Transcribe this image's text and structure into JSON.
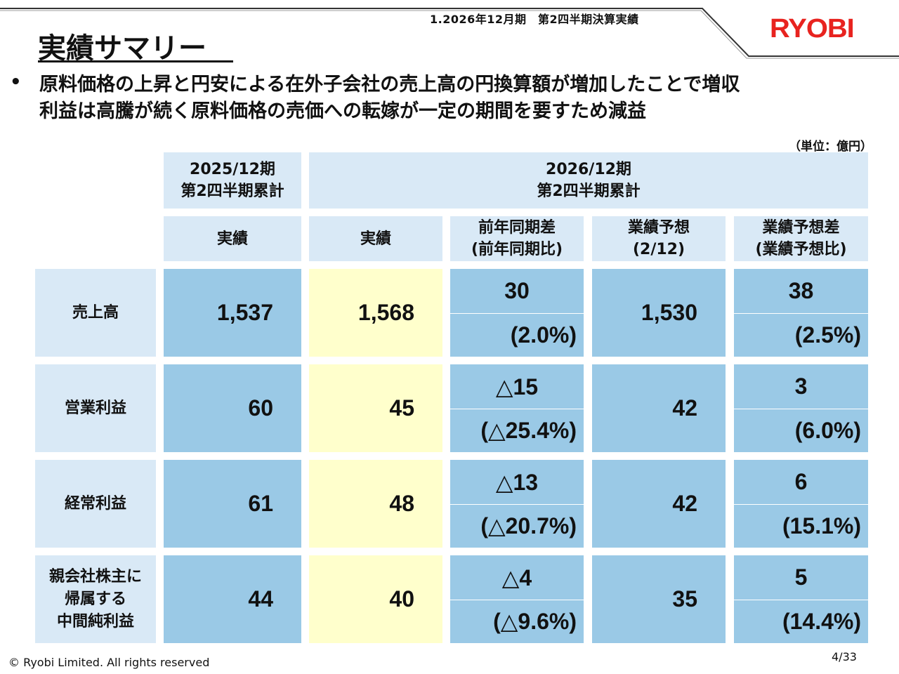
{
  "header": {
    "subtitle": "1.2026年12月期　第2四半期決算実績",
    "logo": "RYOBI",
    "title": "実績サマリー"
  },
  "summary": {
    "bullet": "•",
    "line1": "原料価格の上昇と円安による在外子会社の売上高の円換算額が増加したことで増収",
    "line2": "利益は高騰が続く原料価格の売価への転嫁が一定の期間を要すため減益"
  },
  "unit": "（単位：億円）",
  "table": {
    "period_prev": {
      "line1": "2025/12期",
      "line2": "第2四半期累計"
    },
    "period_curr": {
      "line1": "2026/12期",
      "line2": "第2四半期累計"
    },
    "col_prev_actual": "実績",
    "col_curr_actual": "実績",
    "col_yoy": {
      "line1": "前年同期差",
      "line2": "(前年同期比)"
    },
    "col_forecast": {
      "line1": "業績予想",
      "line2": "(2/12)"
    },
    "col_vs_forecast": {
      "line1": "業績予想差",
      "line2": "(業績予想比)"
    },
    "rows": [
      {
        "label": [
          "売上高"
        ],
        "prev": "1,537",
        "curr": "1,568",
        "yoy": "30",
        "yoy_pct": "(2.0%)",
        "forecast": "1,530",
        "diff": "38",
        "diff_pct": "(2.5%)"
      },
      {
        "label": [
          "営業利益"
        ],
        "prev": "60",
        "curr": "45",
        "yoy": "△15",
        "yoy_pct": "(△25.4%)",
        "forecast": "42",
        "diff": "3",
        "diff_pct": "(6.0%)"
      },
      {
        "label": [
          "経常利益"
        ],
        "prev": "61",
        "curr": "48",
        "yoy": "△13",
        "yoy_pct": "(△20.7%)",
        "forecast": "42",
        "diff": "6",
        "diff_pct": "(15.1%)"
      },
      {
        "label": [
          "親会社株主に",
          "帰属する",
          "中間純利益"
        ],
        "prev": "44",
        "curr": "40",
        "yoy": "△4",
        "yoy_pct": "(△9.6%)",
        "forecast": "35",
        "diff": "5",
        "diff_pct": "(14.4%)"
      }
    ]
  },
  "footer": {
    "copyright": "© Ryobi Limited. All rights reserved",
    "page": "4/33"
  },
  "colors": {
    "logo": "#e8231f",
    "header_cell": "#d9e9f6",
    "data_cell": "#9ac9e6",
    "highlight_cell": "#ffffcc"
  }
}
